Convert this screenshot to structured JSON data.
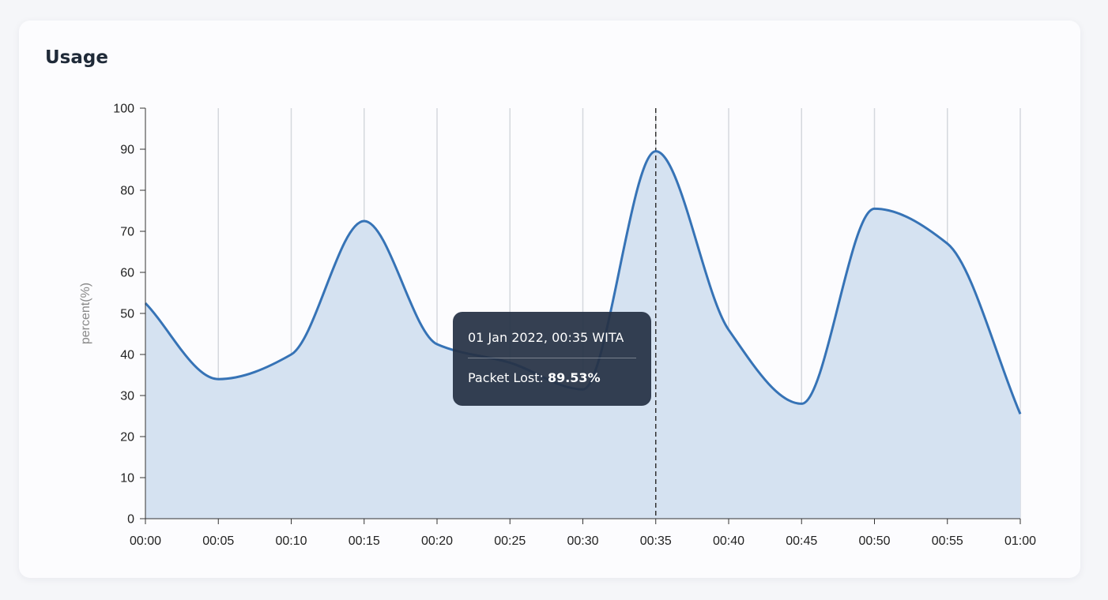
{
  "card": {
    "title": "Usage"
  },
  "chart_data": {
    "type": "area",
    "title": "",
    "xlabel": "",
    "ylabel": "percent(%)",
    "x": [
      "00:00",
      "00:05",
      "00:10",
      "00:15",
      "00:20",
      "00:25",
      "00:30",
      "00:35",
      "00:40",
      "00:45",
      "00:50",
      "00:55",
      "01:00"
    ],
    "series": [
      {
        "values": [
          52.5,
          34,
          40,
          72.5,
          42.5,
          38,
          31.5,
          89.5,
          46,
          28,
          75.5,
          67,
          25.5
        ]
      }
    ],
    "ylim": [
      0,
      100
    ],
    "yticks": [
      0,
      10,
      20,
      30,
      40,
      50,
      60,
      70,
      80,
      90,
      100
    ],
    "grid": "vertical",
    "line_color": "#3673b6",
    "fill_color": "#d5e2f1",
    "grid_color": "#d5d8dd",
    "hover_index": 7
  },
  "tooltip": {
    "date": "01 Jan 2022, 00:35 WITA",
    "label": "Packet Lost:",
    "value": "89.53%"
  }
}
